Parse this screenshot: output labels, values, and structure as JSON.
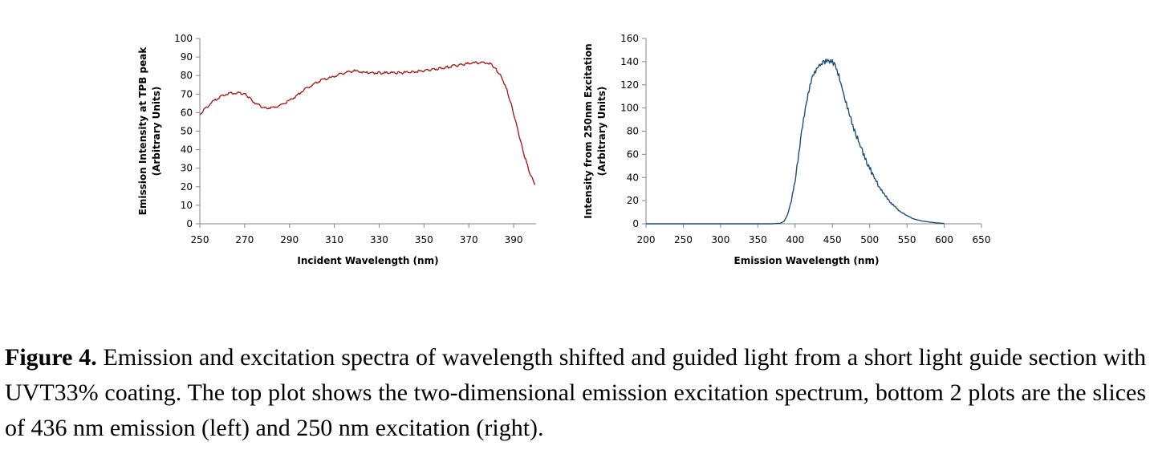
{
  "chart_data": [
    {
      "type": "line",
      "xlabel": "Incident Wavelength (nm)",
      "ylabel_line1": "Emission Intensity at TPB peak",
      "ylabel_line2": "(Arbitrary Units)",
      "xlim": [
        250,
        400
      ],
      "ylim": [
        0,
        100
      ],
      "xticks": [
        250,
        270,
        290,
        310,
        330,
        350,
        370,
        390
      ],
      "yticks": [
        0,
        10,
        20,
        30,
        40,
        50,
        60,
        70,
        80,
        90,
        100
      ],
      "color": "#a81e1e",
      "series": [
        {
          "x": [
            250,
            253,
            256,
            259,
            262,
            265,
            268,
            270,
            272,
            275,
            278,
            280,
            283,
            286,
            289,
            292,
            295,
            298,
            301,
            304,
            307,
            310,
            313,
            316,
            319,
            322,
            325,
            330,
            335,
            340,
            345,
            350,
            355,
            360,
            365,
            370,
            373,
            376,
            379,
            381,
            383,
            385,
            387,
            389,
            391,
            393,
            395,
            397,
            399.5
          ],
          "y": [
            59,
            63,
            66,
            68.5,
            70,
            70.5,
            70.5,
            70,
            68,
            65,
            63,
            62.5,
            63,
            64,
            66,
            68,
            71,
            73.5,
            75.5,
            77.5,
            78.5,
            79.5,
            81,
            82,
            82.5,
            82,
            81.5,
            81.5,
            81.5,
            81.5,
            82,
            82.5,
            83.5,
            84.5,
            85.5,
            86.5,
            87,
            87,
            86.5,
            85,
            82,
            78,
            72,
            64,
            55,
            45,
            36,
            28,
            21
          ]
        }
      ]
    },
    {
      "type": "line",
      "xlabel": "Emission Wavelength (nm)",
      "ylabel_line1": "Intensity from 250nm Excitation",
      "ylabel_line2": "(Arbitrary Units)",
      "xlim": [
        200,
        650
      ],
      "ylim": [
        0,
        160
      ],
      "xticks": [
        200,
        250,
        300,
        350,
        400,
        450,
        500,
        550,
        600,
        650
      ],
      "yticks": [
        0,
        20,
        40,
        60,
        80,
        100,
        120,
        140,
        160
      ],
      "color": "#1f4e79",
      "series": [
        {
          "x": [
            200,
            300,
            370,
            380,
            385,
            390,
            395,
            400,
            405,
            410,
            415,
            420,
            425,
            430,
            435,
            440,
            445,
            450,
            455,
            460,
            465,
            470,
            475,
            480,
            490,
            500,
            510,
            520,
            530,
            540,
            550,
            560,
            570,
            580,
            590,
            600
          ],
          "y": [
            0,
            0,
            0,
            0.5,
            2,
            8,
            20,
            38,
            60,
            85,
            105,
            120,
            130,
            135,
            138,
            140,
            141,
            140,
            135,
            125,
            112,
            100,
            90,
            80,
            63,
            48,
            35,
            25,
            17,
            11,
            7,
            4,
            2.5,
            1.5,
            0.8,
            0.3
          ]
        }
      ]
    }
  ],
  "caption": {
    "label": "Figure 4.",
    "text": " Emission and excitation spectra of wavelength shifted and guided light from a short light guide section with UVT33% coating.  The top plot shows the two-dimensional emission excitation spectrum, bottom 2 plots are the slices of 436 nm emission (left) and 250 nm excitation (right)."
  }
}
